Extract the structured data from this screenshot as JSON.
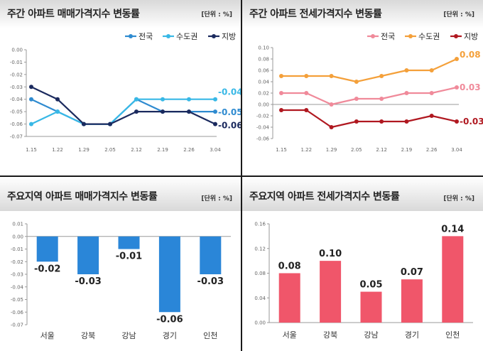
{
  "chart_data": [
    {
      "type": "line",
      "title": "주간 아파트 매매가격지수 변동률",
      "unit": "[단위 : %]",
      "categories": [
        "1.15",
        "1.22",
        "1.29",
        "2.05",
        "2.12",
        "2.19",
        "2.26",
        "3.04"
      ],
      "ylim": [
        -0.07,
        0.0
      ],
      "yticks": [
        0.0,
        -0.01,
        -0.02,
        -0.03,
        -0.04,
        -0.05,
        -0.06,
        -0.07
      ],
      "ytick_labels": [
        "0.00",
        "-0.01",
        "-0.02",
        "-0.03",
        "-0.04",
        "-0.05",
        "-0.06",
        "-0.07"
      ],
      "series": [
        {
          "name": "전국",
          "color": "#2f8bd0",
          "values": [
            -0.04,
            -0.05,
            -0.06,
            -0.06,
            -0.04,
            -0.05,
            -0.05,
            -0.05
          ],
          "end_label": "-0.05"
        },
        {
          "name": "수도권",
          "color": "#38b8e6",
          "values": [
            -0.06,
            -0.05,
            -0.06,
            -0.06,
            -0.04,
            -0.04,
            -0.04,
            -0.04
          ],
          "end_label": "-0.04"
        },
        {
          "name": "지방",
          "color": "#1b2a5e",
          "values": [
            -0.03,
            -0.04,
            -0.06,
            -0.06,
            -0.05,
            -0.05,
            -0.05,
            -0.06
          ],
          "end_label": "-0.06"
        }
      ]
    },
    {
      "type": "line",
      "title": "주간 아파트 전세가격지수 변동률",
      "unit": "[단위 : %]",
      "categories": [
        "1.15",
        "1.22",
        "1.29",
        "2.05",
        "2.12",
        "2.19",
        "2.26",
        "3.04"
      ],
      "ylim": [
        -0.06,
        0.1
      ],
      "yticks": [
        0.1,
        0.08,
        0.06,
        0.04,
        0.02,
        0.0,
        -0.02,
        -0.04,
        -0.06
      ],
      "ytick_labels": [
        "0.10",
        "0.08",
        "0.06",
        "0.04",
        "0.02",
        "0.00",
        "-0.02",
        "-0.04",
        "-0.06"
      ],
      "series": [
        {
          "name": "전국",
          "color": "#f08a9a",
          "values": [
            0.02,
            0.02,
            0.0,
            0.01,
            0.01,
            0.02,
            0.02,
            0.03
          ],
          "end_label": "0.03"
        },
        {
          "name": "수도권",
          "color": "#f4a03a",
          "values": [
            0.05,
            0.05,
            0.05,
            0.04,
            0.05,
            0.06,
            0.06,
            0.08
          ],
          "end_label": "0.08"
        },
        {
          "name": "지방",
          "color": "#b01820",
          "values": [
            -0.01,
            -0.01,
            -0.04,
            -0.03,
            -0.03,
            -0.03,
            -0.02,
            -0.03
          ],
          "end_label": "-0.03"
        }
      ]
    },
    {
      "type": "bar",
      "title": "주요지역 아파트 매매가격지수 변동률",
      "unit": "[단위 : %]",
      "categories": [
        "서울",
        "강북",
        "강남",
        "경기",
        "인천"
      ],
      "values": [
        -0.02,
        -0.03,
        -0.01,
        -0.06,
        -0.03
      ],
      "value_labels": [
        "-0.02",
        "-0.03",
        "-0.01",
        "-0.06",
        "-0.03"
      ],
      "color": "#2a86d8",
      "ylim": [
        -0.07,
        0.01
      ],
      "yticks": [
        0.01,
        0.0,
        -0.01,
        -0.02,
        -0.03,
        -0.04,
        -0.05,
        -0.06,
        -0.07
      ],
      "ytick_labels": [
        "0.01",
        "0.00",
        "-0.01",
        "-0.02",
        "-0.03",
        "-0.04",
        "-0.05",
        "-0.06",
        "-0.07"
      ]
    },
    {
      "type": "bar",
      "title": "주요지역 아파트 전세가격지수 변동률",
      "unit": "[단위 : %]",
      "categories": [
        "서울",
        "강북",
        "강남",
        "경기",
        "인천"
      ],
      "values": [
        0.08,
        0.1,
        0.05,
        0.07,
        0.14
      ],
      "value_labels": [
        "0.08",
        "0.10",
        "0.05",
        "0.07",
        "0.14"
      ],
      "color": "#f0566a",
      "ylim": [
        0.0,
        0.16
      ],
      "yticks": [
        0.16,
        0.12,
        0.08,
        0.04,
        0.0
      ],
      "ytick_labels": [
        "0.16",
        "0.12",
        "0.08",
        "0.04",
        "0.00"
      ]
    }
  ]
}
